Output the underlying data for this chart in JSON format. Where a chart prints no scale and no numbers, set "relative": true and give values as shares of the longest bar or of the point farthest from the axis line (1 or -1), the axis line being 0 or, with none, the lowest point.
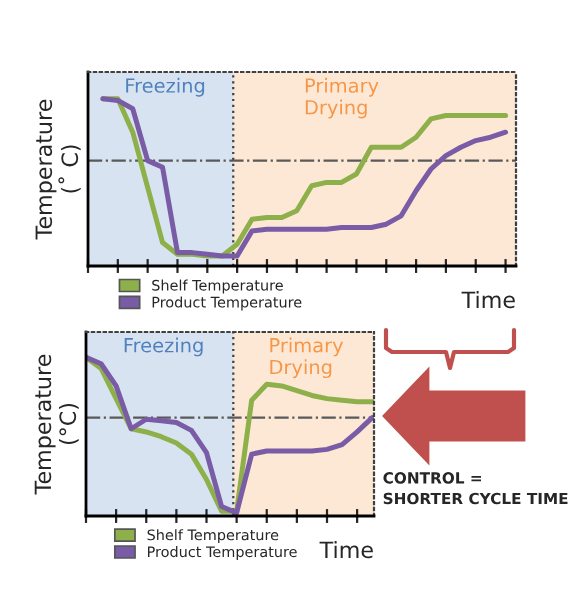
{
  "chart_data": [
    {
      "type": "line",
      "relative": true,
      "ylabel": "Temperature\n(˚ C)",
      "xlabel": "Time",
      "legend": "bottom",
      "grid": false,
      "categories": [
        null,
        null,
        null,
        null,
        null,
        null,
        null,
        null,
        null,
        null,
        null,
        null,
        null,
        null,
        null,
        null,
        null,
        null,
        null,
        null,
        null,
        null,
        null,
        null,
        null,
        null,
        null,
        null,
        null
      ],
      "annotations": [
        "Freezing",
        "Primary\nDrying"
      ],
      "ref_lines": [
        {
          "axis": "y",
          "value": 0.63,
          "color": "#595959",
          "line_style": "dashdot"
        }
      ],
      "series": [
        {
          "name": "Shelf Temperature",
          "color": "#8db04a",
          "values": [
            null,
            1.0,
            1.0,
            0.8,
            0.47,
            0.14,
            0.07,
            0.07,
            0.06,
            0.06,
            0.13,
            0.28,
            0.29,
            0.29,
            0.33,
            0.48,
            0.5,
            0.5,
            0.55,
            0.71,
            0.71,
            0.71,
            0.77,
            0.88,
            0.9,
            0.9,
            0.9,
            0.9,
            0.9
          ]
        },
        {
          "name": "Product Temperature",
          "color": "#7a5ba6",
          "values": [
            null,
            1.0,
            0.99,
            0.94,
            0.63,
            0.59,
            0.08,
            0.08,
            0.07,
            0.06,
            0.06,
            0.21,
            0.22,
            0.22,
            0.22,
            0.22,
            0.22,
            0.23,
            0.23,
            0.23,
            0.25,
            0.3,
            0.45,
            0.58,
            0.66,
            0.71,
            0.75,
            0.77,
            0.8
          ]
        }
      ]
    },
    {
      "type": "line",
      "relative": true,
      "ylabel": "Temperature\n(°C)",
      "xlabel": "Time",
      "legend": "bottom",
      "grid": false,
      "categories": [
        null,
        null,
        null,
        null,
        null,
        null,
        null,
        null,
        null,
        null,
        null,
        null,
        null,
        null,
        null,
        null,
        null,
        null,
        null,
        null
      ],
      "ref_lines": [
        {
          "axis": "y",
          "value": 0.62,
          "color": "#595959",
          "line_style": "dashdot"
        }
      ],
      "annotations": [
        "Freezing",
        "Primary\nDrying",
        "CONTROL =\nSHORTER CYCLE TIME"
      ],
      "series": [
        {
          "name": "Shelf Temperature",
          "color": "#8db04a",
          "values": [
            1.0,
            0.93,
            0.74,
            0.55,
            0.53,
            0.5,
            0.46,
            0.39,
            0.23,
            0.03,
            0.03,
            0.73,
            0.83,
            0.82,
            0.79,
            0.76,
            0.74,
            0.73,
            0.72,
            0.72
          ]
        },
        {
          "name": "Product Temperature",
          "color": "#7a5ba6",
          "values": [
            1.0,
            0.96,
            0.82,
            0.55,
            0.61,
            0.6,
            0.59,
            0.54,
            0.4,
            0.06,
            0.02,
            0.39,
            0.41,
            0.41,
            0.41,
            0.41,
            0.42,
            0.45,
            0.53,
            0.62
          ]
        }
      ]
    }
  ]
}
